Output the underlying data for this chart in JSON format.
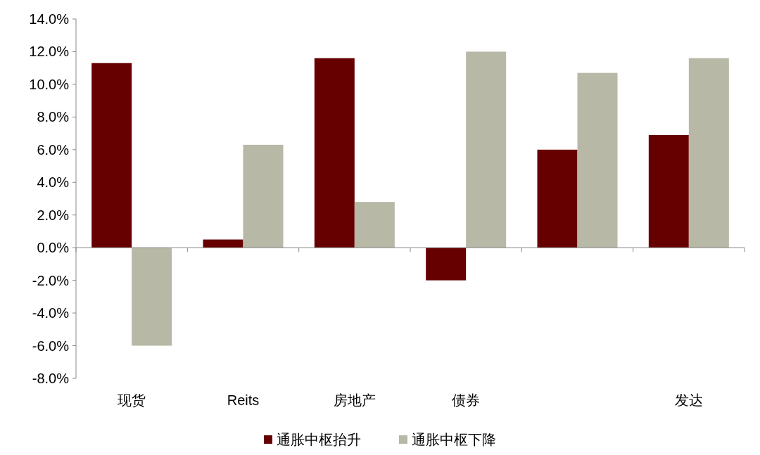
{
  "chart_data": {
    "type": "bar",
    "categories": [
      "现货",
      "Reits",
      "房地产",
      "债券",
      null,
      "发达"
    ],
    "series": [
      {
        "name": "通胀中枢抬升",
        "color": "#660000",
        "values": [
          11.3,
          0.5,
          11.6,
          -2.0,
          6.0,
          6.9
        ]
      },
      {
        "name": "通胀中枢下降",
        "color": "#b8b8a6",
        "values": [
          -6.0,
          6.3,
          2.8,
          12.0,
          10.7,
          11.6
        ]
      }
    ],
    "ylim": [
      -8,
      14
    ],
    "yticks": [
      {
        "value": -8,
        "label": "-8.0%"
      },
      {
        "value": -6,
        "label": "-6.0%"
      },
      {
        "value": -4,
        "label": "-4.0%"
      },
      {
        "value": -2,
        "label": "-2.0%"
      },
      {
        "value": 0,
        "label": "0.0%"
      },
      {
        "value": 2,
        "label": "2.0%"
      },
      {
        "value": 4,
        "label": "4.0%"
      },
      {
        "value": 6,
        "label": "6.0%"
      },
      {
        "value": 8,
        "label": "8.0%"
      },
      {
        "value": 10,
        "label": "10.0%"
      },
      {
        "value": 12,
        "label": "12.0%"
      },
      {
        "value": 14,
        "label": "14.0%"
      }
    ],
    "legend": "bottom"
  }
}
